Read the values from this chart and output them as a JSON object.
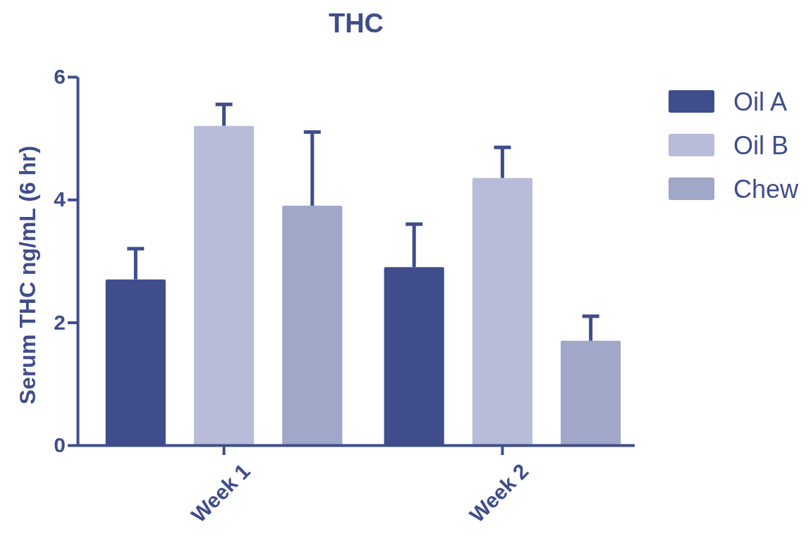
{
  "chart_data": {
    "type": "bar",
    "title": "THC",
    "ylabel": "Serum THC ng/mL (6 hr)",
    "categories": [
      "Week 1",
      "Week 2"
    ],
    "series": [
      {
        "name": "Oil A",
        "color": "#3f4d8c",
        "values": [
          2.7,
          2.9
        ],
        "errors": [
          [
            2.7,
            3.2
          ],
          [
            2.9,
            3.6
          ]
        ]
      },
      {
        "name": "Oil B",
        "color": "#b8bcd8",
        "values": [
          5.2,
          4.35
        ],
        "errors": [
          [
            5.2,
            5.55
          ],
          [
            4.35,
            4.85
          ]
        ]
      },
      {
        "name": "Chew",
        "color": "#a0a7c8",
        "values": [
          3.9,
          1.7
        ],
        "errors": [
          [
            3.9,
            5.1
          ],
          [
            1.7,
            2.1
          ]
        ]
      }
    ],
    "ylim": [
      0,
      6
    ],
    "yticks": [
      0,
      2,
      4,
      6
    ],
    "grid": false,
    "legend": "right"
  }
}
